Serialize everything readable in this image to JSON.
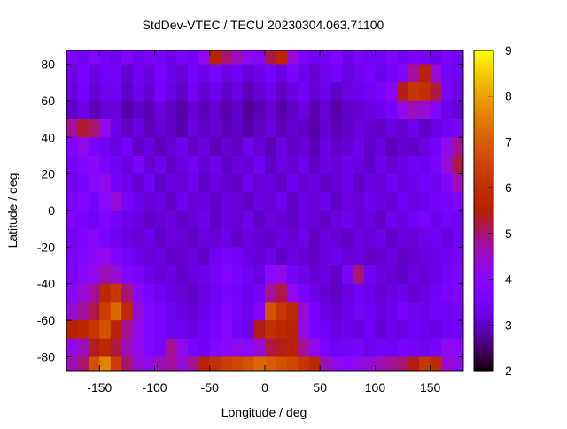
{
  "chart_data": {
    "type": "heatmap",
    "title": "StdDev-VTEC / TECU 20230304.063.71100",
    "xlabel": "Longitude / deg",
    "ylabel": "Latitude / deg",
    "xlim": [
      -180,
      180
    ],
    "ylim": [
      -87.5,
      87.5
    ],
    "xticks": [
      -150,
      -100,
      -50,
      0,
      50,
      100,
      150
    ],
    "yticks": [
      80,
      60,
      40,
      20,
      0,
      -20,
      -40,
      -60,
      -80
    ],
    "colorbar": {
      "range": [
        2,
        9
      ],
      "ticks": [
        9,
        8,
        7,
        6,
        5,
        4,
        3,
        2
      ],
      "palette": "black-blue-violet-red-yellow"
    },
    "coastline_color": "#00ffff",
    "grid": false,
    "lon_centers": [
      -175,
      -165,
      -155,
      -145,
      -135,
      -125,
      -115,
      -105,
      -95,
      -85,
      -75,
      -65,
      -55,
      -45,
      -35,
      -25,
      -15,
      -5,
      5,
      15,
      25,
      35,
      45,
      55,
      65,
      75,
      85,
      95,
      105,
      115,
      125,
      135,
      145,
      155,
      165,
      175
    ],
    "lat_centers": [
      85,
      75,
      65,
      55,
      45,
      35,
      25,
      15,
      5,
      -5,
      -15,
      -25,
      -35,
      -45,
      -55,
      -65,
      -75,
      -85
    ],
    "values": [
      [
        3.6,
        3.4,
        3.8,
        3.5,
        3.3,
        3.7,
        3.4,
        3.6,
        3.5,
        3.3,
        3.6,
        3.4,
        4.2,
        5.6,
        5.0,
        4.6,
        4.1,
        3.9,
        5.2,
        5.7,
        4.4,
        3.6,
        3.4,
        3.5,
        3.8,
        3.3,
        3.6,
        3.4,
        3.5,
        3.7,
        3.4,
        3.6,
        3.5,
        3.3,
        3.6,
        3.4
      ],
      [
        3.3,
        3.6,
        3.2,
        3.4,
        3.5,
        3.1,
        3.4,
        3.2,
        3.6,
        3.3,
        3.1,
        3.5,
        3.3,
        3.6,
        3.2,
        3.4,
        3.1,
        3.3,
        3.5,
        3.2,
        3.6,
        3.3,
        3.1,
        3.4,
        3.5,
        3.2,
        3.4,
        3.6,
        3.3,
        3.5,
        3.8,
        4.8,
        5.6,
        4.4,
        3.5,
        3.4
      ],
      [
        3.2,
        3.5,
        3.1,
        3.3,
        3.4,
        3.0,
        3.3,
        3.1,
        3.5,
        3.2,
        3.0,
        3.4,
        3.1,
        3.3,
        3.0,
        3.2,
        2.9,
        3.1,
        3.3,
        3.0,
        3.2,
        3.4,
        3.1,
        3.3,
        3.0,
        3.2,
        3.3,
        3.4,
        3.6,
        3.9,
        5.4,
        6.2,
        6.0,
        5.2,
        3.6,
        3.3
      ],
      [
        3.0,
        3.3,
        2.9,
        3.1,
        3.2,
        2.8,
        3.0,
        2.9,
        3.2,
        3.0,
        2.8,
        3.1,
        2.9,
        3.1,
        2.8,
        3.0,
        2.7,
        2.9,
        3.1,
        2.8,
        3.0,
        3.2,
        2.9,
        3.1,
        2.8,
        3.0,
        3.1,
        3.2,
        3.3,
        3.5,
        4.2,
        4.6,
        4.4,
        3.8,
        3.3,
        3.1
      ],
      [
        4.8,
        5.3,
        5.0,
        4.2,
        3.3,
        3.0,
        3.2,
        2.9,
        3.1,
        3.0,
        2.8,
        3.2,
        3.0,
        3.1,
        2.9,
        3.0,
        2.8,
        3.0,
        3.2,
        2.9,
        3.1,
        3.0,
        2.8,
        3.1,
        2.9,
        3.0,
        3.2,
        3.1,
        3.0,
        3.2,
        3.1,
        3.3,
        3.0,
        3.2,
        3.4,
        3.6
      ],
      [
        3.8,
        4.2,
        3.6,
        3.4,
        3.2,
        3.5,
        3.0,
        3.2,
        2.9,
        3.1,
        3.3,
        3.0,
        3.2,
        2.9,
        3.1,
        3.0,
        3.3,
        3.1,
        2.9,
        3.2,
        3.0,
        3.1,
        2.9,
        3.2,
        3.0,
        3.1,
        3.3,
        3.0,
        3.2,
        2.9,
        3.1,
        3.0,
        3.2,
        3.5,
        4.2,
        4.8
      ],
      [
        3.5,
        3.8,
        4.0,
        3.6,
        3.4,
        3.2,
        3.6,
        3.1,
        3.3,
        3.0,
        3.2,
        3.4,
        3.1,
        3.3,
        3.0,
        3.2,
        3.1,
        3.4,
        3.0,
        3.2,
        3.1,
        3.3,
        3.0,
        3.2,
        3.1,
        3.3,
        3.2,
        3.0,
        3.3,
        3.1,
        3.2,
        3.4,
        3.3,
        3.6,
        4.4,
        5.2
      ],
      [
        3.4,
        3.6,
        3.9,
        4.2,
        3.5,
        3.3,
        3.1,
        3.4,
        3.0,
        3.2,
        3.1,
        3.3,
        3.0,
        3.2,
        3.1,
        3.0,
        3.3,
        3.1,
        3.2,
        3.0,
        3.3,
        3.1,
        3.2,
        3.0,
        3.1,
        3.3,
        3.0,
        3.2,
        3.1,
        3.4,
        3.2,
        3.3,
        3.5,
        3.4,
        3.8,
        4.6
      ],
      [
        3.6,
        3.8,
        3.5,
        4.0,
        4.4,
        3.6,
        3.3,
        3.1,
        3.2,
        3.0,
        3.3,
        3.1,
        3.2,
        3.0,
        3.2,
        3.1,
        3.0,
        3.2,
        3.1,
        3.3,
        3.0,
        3.2,
        3.1,
        3.3,
        3.0,
        3.2,
        3.1,
        3.3,
        3.2,
        3.1,
        3.4,
        3.2,
        3.3,
        3.5,
        3.6,
        3.8
      ],
      [
        3.8,
        3.6,
        3.4,
        3.7,
        3.5,
        3.3,
        3.2,
        3.0,
        3.1,
        3.2,
        3.0,
        3.1,
        3.3,
        3.0,
        3.2,
        3.1,
        3.3,
        3.0,
        3.2,
        3.1,
        3.0,
        3.2,
        3.1,
        3.0,
        3.2,
        3.3,
        3.1,
        3.2,
        3.0,
        3.3,
        3.2,
        3.4,
        3.6,
        3.3,
        3.5,
        3.4
      ],
      [
        3.5,
        3.7,
        3.9,
        3.6,
        3.4,
        3.2,
        3.1,
        3.3,
        3.0,
        3.2,
        3.1,
        3.0,
        3.2,
        3.1,
        3.3,
        3.0,
        3.2,
        3.1,
        3.0,
        3.2,
        3.1,
        3.3,
        3.0,
        3.2,
        3.1,
        3.0,
        3.2,
        3.1,
        3.3,
        3.0,
        3.2,
        3.1,
        3.3,
        3.4,
        3.2,
        3.5
      ],
      [
        3.6,
        3.8,
        4.0,
        4.2,
        3.7,
        3.5,
        3.3,
        3.1,
        3.2,
        3.0,
        3.1,
        3.2,
        3.0,
        3.4,
        3.6,
        3.5,
        3.2,
        3.1,
        3.3,
        3.0,
        3.2,
        3.1,
        3.0,
        3.2,
        3.3,
        3.1,
        3.2,
        3.0,
        3.1,
        3.2,
        3.0,
        3.1,
        3.2,
        3.3,
        3.4,
        3.6
      ],
      [
        3.8,
        4.0,
        4.2,
        4.6,
        4.4,
        3.8,
        3.6,
        3.3,
        3.1,
        3.2,
        3.0,
        3.2,
        3.3,
        3.5,
        3.8,
        3.6,
        3.4,
        3.2,
        4.0,
        4.2,
        3.5,
        3.3,
        3.1,
        3.2,
        3.0,
        3.6,
        5.0,
        3.4,
        3.2,
        3.1,
        3.0,
        3.2,
        3.1,
        3.3,
        3.5,
        3.7
      ],
      [
        4.0,
        4.4,
        4.8,
        5.8,
        6.2,
        5.0,
        4.0,
        3.6,
        3.4,
        3.2,
        3.1,
        3.0,
        3.2,
        3.4,
        3.6,
        3.5,
        3.3,
        3.5,
        4.8,
        5.2,
        4.2,
        3.6,
        3.3,
        3.1,
        3.0,
        3.2,
        3.4,
        3.3,
        3.1,
        3.2,
        3.3,
        3.1,
        3.2,
        3.4,
        3.6,
        3.8
      ],
      [
        4.4,
        4.8,
        5.2,
        6.4,
        7.2,
        5.8,
        4.4,
        3.8,
        3.6,
        3.4,
        3.2,
        3.1,
        3.3,
        3.5,
        3.8,
        3.6,
        3.4,
        3.8,
        6.8,
        6.2,
        5.8,
        4.4,
        3.6,
        3.2,
        3.1,
        3.3,
        3.5,
        3.4,
        3.2,
        3.3,
        3.6,
        3.4,
        3.3,
        3.5,
        3.4,
        3.6
      ],
      [
        5.6,
        5.8,
        6.2,
        6.8,
        5.6,
        4.8,
        4.2,
        3.8,
        3.6,
        3.4,
        3.3,
        3.2,
        3.4,
        3.6,
        3.9,
        3.5,
        3.3,
        5.4,
        6.0,
        5.8,
        5.6,
        4.2,
        3.6,
        3.4,
        3.2,
        3.3,
        3.2,
        3.4,
        3.1,
        3.3,
        3.2,
        3.4,
        3.3,
        3.2,
        3.4,
        3.5
      ],
      [
        4.2,
        4.6,
        5.4,
        5.8,
        5.2,
        4.6,
        4.2,
        3.8,
        3.6,
        4.8,
        4.2,
        3.6,
        3.4,
        3.8,
        4.0,
        4.2,
        4.0,
        4.4,
        5.2,
        5.4,
        5.6,
        4.8,
        4.2,
        3.6,
        3.4,
        3.5,
        3.6,
        3.3,
        3.5,
        3.4,
        3.6,
        3.5,
        3.4,
        3.6,
        4.2,
        4.0
      ],
      [
        4.6,
        5.0,
        6.8,
        7.6,
        6.4,
        5.0,
        4.4,
        4.2,
        4.6,
        4.8,
        4.4,
        4.8,
        5.6,
        6.0,
        6.4,
        6.6,
        6.8,
        7.2,
        7.0,
        6.8,
        6.6,
        6.2,
        5.8,
        4.6,
        4.2,
        4.0,
        4.2,
        4.4,
        4.6,
        4.8,
        5.0,
        5.4,
        6.2,
        5.8,
        4.4,
        4.2
      ]
    ]
  }
}
